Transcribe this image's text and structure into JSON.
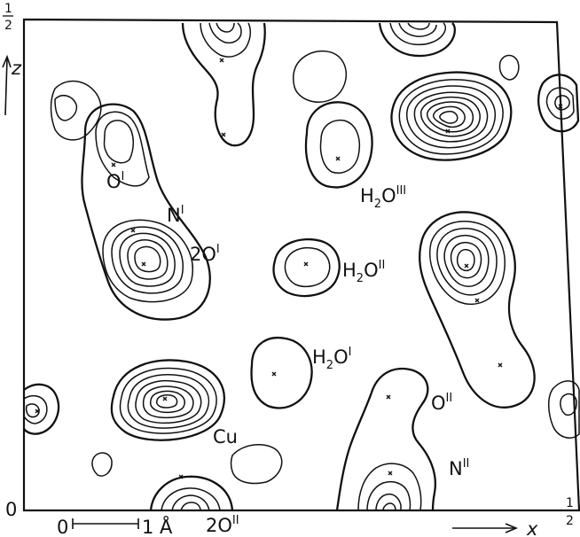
{
  "axes": {
    "origin": "0",
    "z_top_half": {
      "num": "1",
      "den": "2"
    },
    "x_right_half": {
      "num": "1",
      "den": "2"
    },
    "z_label": "z",
    "x_label": "x"
  },
  "scale_bar": {
    "start": "0",
    "end": "1 Å"
  },
  "labels": {
    "O1": {
      "base": "O",
      "sup": "I"
    },
    "N1": {
      "base": "N",
      "sup": "I"
    },
    "twoO1": {
      "base": "2O",
      "sup": "I"
    },
    "H2O3": {
      "base": "H",
      "sub": "2",
      "base2": "O",
      "sup": "III"
    },
    "H2O2": {
      "base": "H",
      "sub": "2",
      "base2": "O",
      "sup": "II"
    },
    "H2O1": {
      "base": "H",
      "sub": "2",
      "base2": "O",
      "sup": "I"
    },
    "Cu": {
      "base": "Cu"
    },
    "O2": {
      "base": "O",
      "sup": "II"
    },
    "N2": {
      "base": "N",
      "sup": "II"
    },
    "twoO2": {
      "base": "2O",
      "sup": "II"
    }
  }
}
